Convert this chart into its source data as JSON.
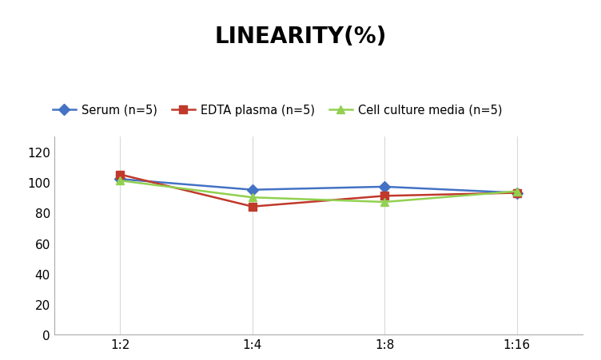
{
  "title": "LINEARITY(%)",
  "title_fontsize": 20,
  "title_fontweight": "bold",
  "x_labels": [
    "1:2",
    "1:4",
    "1:8",
    "1:16"
  ],
  "series": [
    {
      "label": "Serum (n=5)",
      "values": [
        102,
        95,
        97,
        93
      ],
      "color": "#4472C4",
      "marker": "D",
      "markersize": 7,
      "linewidth": 1.8
    },
    {
      "label": "EDTA plasma (n=5)",
      "values": [
        105,
        84,
        91,
        93
      ],
      "color": "#C0392B",
      "marker": "s",
      "markersize": 7,
      "linewidth": 1.8
    },
    {
      "label": "Cell culture media (n=5)",
      "values": [
        101,
        90,
        87,
        94
      ],
      "color": "#92D050",
      "marker": "^",
      "markersize": 7,
      "linewidth": 1.8
    }
  ],
  "ylim": [
    0,
    130
  ],
  "yticks": [
    0,
    20,
    40,
    60,
    80,
    100,
    120
  ],
  "grid_color": "#D9D9D9",
  "grid_linewidth": 0.8,
  "background_color": "#FFFFFF",
  "legend_fontsize": 10.5,
  "tick_fontsize": 11
}
